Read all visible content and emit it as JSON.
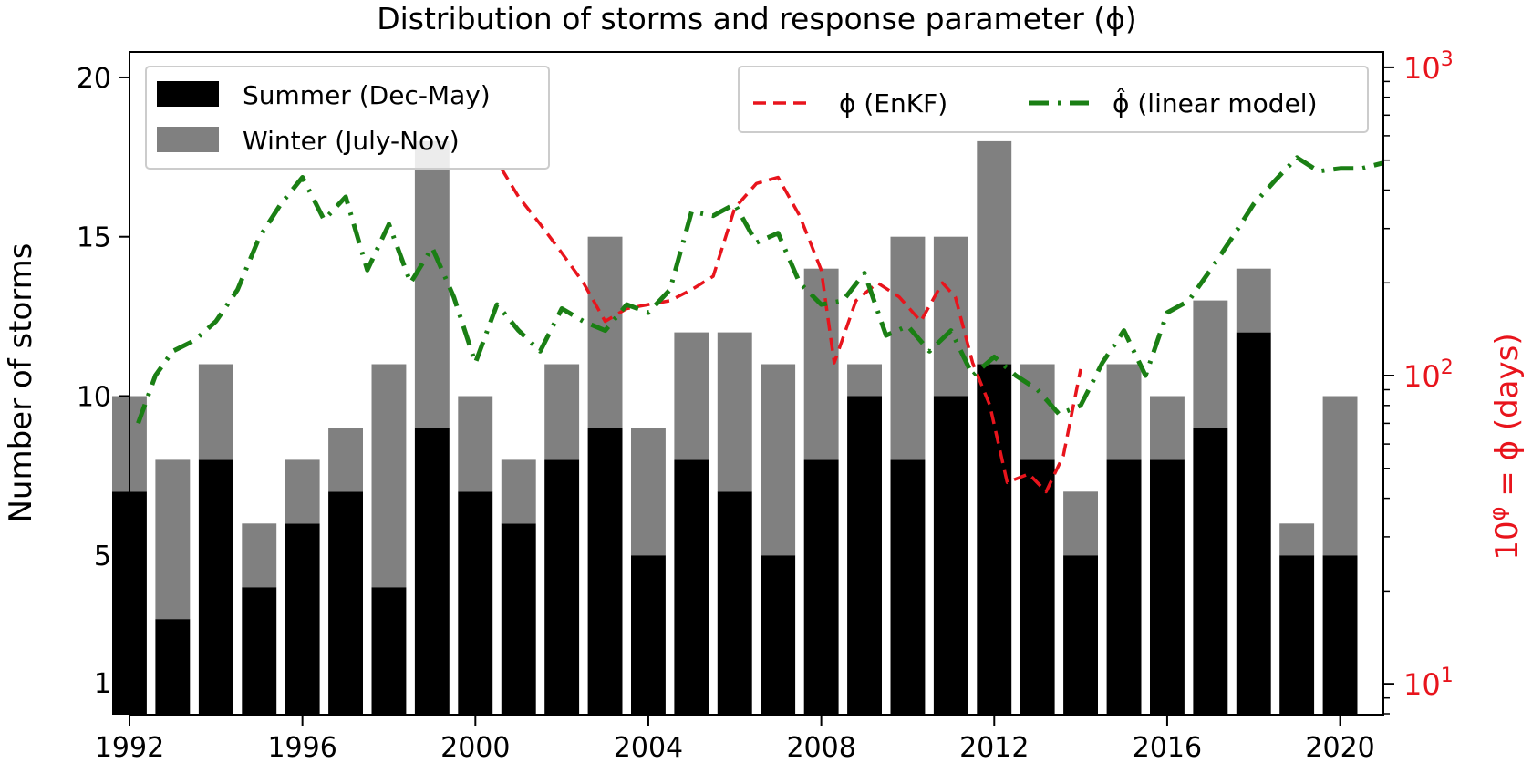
{
  "chart_data": {
    "type": "bar",
    "title": "Distribution of storms and response parameter (ϕ)",
    "xlabel": "",
    "ylabel": "Number of storms",
    "y2label_base": "10",
    "y2label_exp": "φ",
    "y2label_rest": " = ϕ (days)",
    "xlim": [
      1992,
      2021
    ],
    "ylim": [
      0,
      20.8
    ],
    "y2lim_log10": [
      0.9,
      3.05
    ],
    "xticks": [
      "1992",
      "1996",
      "2000",
      "2004",
      "2008",
      "2012",
      "2016",
      "2020"
    ],
    "yticks": [
      "1",
      "5",
      "10",
      "15",
      "20"
    ],
    "y2ticks": [
      {
        "base": "10",
        "exp": "1",
        "value": 10
      },
      {
        "base": "10",
        "exp": "2",
        "value": 100
      },
      {
        "base": "10",
        "exp": "3",
        "value": 1000
      }
    ],
    "categories": [
      1992,
      1993,
      1994,
      1995,
      1996,
      1997,
      1998,
      1999,
      2000,
      2001,
      2002,
      2003,
      2004,
      2005,
      2006,
      2007,
      2008,
      2009,
      2010,
      2011,
      2012,
      2013,
      2014,
      2015,
      2016,
      2017,
      2018,
      2019,
      2020
    ],
    "series": [
      {
        "name": "Summer (Dec-May)",
        "color": "#000000",
        "values": [
          7,
          3,
          8,
          4,
          6,
          7,
          4,
          9,
          7,
          6,
          8,
          9,
          5,
          8,
          7,
          5,
          8,
          10,
          8,
          10,
          11,
          8,
          5,
          8,
          8,
          9,
          12,
          5,
          5
        ]
      },
      {
        "name": "Winter (July-Nov)",
        "color": "#808080",
        "values": [
          3,
          5,
          3,
          2,
          2,
          2,
          7,
          9,
          3,
          2,
          3,
          6,
          4,
          4,
          5,
          6,
          6,
          1,
          7,
          5,
          7,
          3,
          2,
          3,
          2,
          4,
          2,
          1,
          5
        ]
      }
    ],
    "lines": [
      {
        "name": "ϕ (EnKF)",
        "color": "#e8141c",
        "style": "dashed",
        "x": [
          2000.6,
          2001.0,
          2001.5,
          2002.0,
          2002.5,
          2003.0,
          2003.5,
          2004.0,
          2004.5,
          2005.0,
          2005.5,
          2006.0,
          2006.5,
          2007.0,
          2007.5,
          2008.0,
          2008.3,
          2008.8,
          2009.3,
          2009.8,
          2010.3,
          2010.8,
          2011.1,
          2011.5,
          2011.9,
          2012.3,
          2012.8,
          2013.2,
          2013.6,
          2014.0
        ],
        "y": [
          470,
          380,
          310,
          250,
          200,
          150,
          165,
          170,
          175,
          190,
          210,
          350,
          420,
          440,
          330,
          220,
          110,
          175,
          200,
          180,
          150,
          200,
          180,
          110,
          80,
          45,
          48,
          42,
          55,
          105
        ]
      },
      {
        "name": "ϕ̂ (linear model)",
        "color": "#1a7f14",
        "style": "dashdot",
        "x": [
          1992.2,
          1992.6,
          1993.0,
          1993.5,
          1994.0,
          1994.5,
          1995.0,
          1995.5,
          1996.0,
          1996.5,
          1997.0,
          1997.5,
          1998.0,
          1998.5,
          1999.0,
          1999.5,
          2000.0,
          2000.5,
          2001.0,
          2001.5,
          2002.0,
          2002.5,
          2003.0,
          2003.5,
          2004.0,
          2004.5,
          2005.0,
          2005.5,
          2006.0,
          2006.5,
          2007.0,
          2007.5,
          2008.0,
          2008.5,
          2009.0,
          2009.5,
          2010.0,
          2010.5,
          2011.0,
          2011.5,
          2012.0,
          2012.5,
          2013.0,
          2013.5,
          2014.0,
          2014.5,
          2015.0,
          2015.5,
          2016.0,
          2016.5,
          2017.0,
          2017.5,
          2018.0,
          2018.5,
          2019.0,
          2019.5,
          2020.0,
          2020.5,
          2021.0
        ],
        "y": [
          70,
          100,
          120,
          130,
          150,
          190,
          280,
          360,
          440,
          320,
          380,
          220,
          310,
          200,
          260,
          180,
          110,
          170,
          140,
          120,
          165,
          150,
          140,
          170,
          160,
          190,
          340,
          330,
          360,
          270,
          290,
          200,
          170,
          175,
          215,
          135,
          145,
          120,
          140,
          100,
          115,
          100,
          90,
          75,
          80,
          110,
          140,
          100,
          160,
          175,
          220,
          280,
          360,
          430,
          510,
          460,
          470,
          470,
          490
        ]
      }
    ],
    "legend_bars_position": "top-left",
    "legend_lines_position": "top-right",
    "grid": false
  }
}
